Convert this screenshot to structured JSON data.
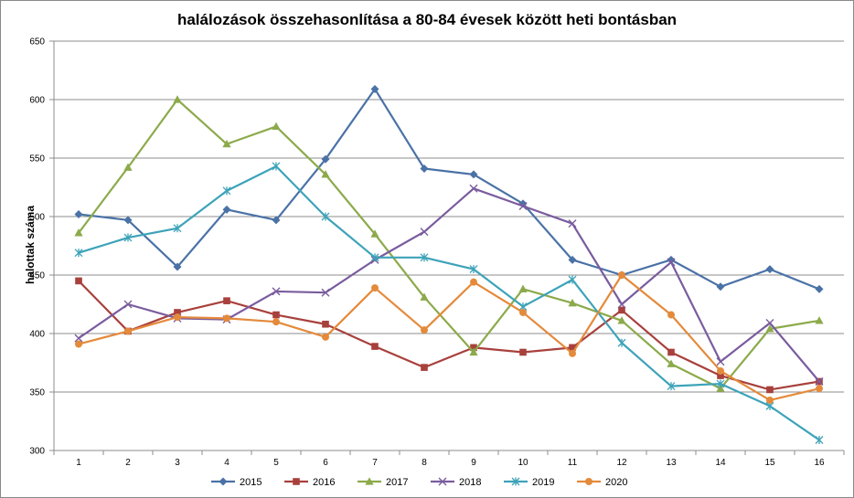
{
  "chart_data": {
    "type": "line",
    "title": "halálozások összehasonlítása a 80-84 évesek között heti bontásban",
    "ylabel": "halottak száma",
    "xlabel": "",
    "ylim": [
      300,
      650
    ],
    "y_ticks": [
      300,
      350,
      400,
      450,
      500,
      550,
      600,
      650
    ],
    "categories": [
      "1",
      "2",
      "3",
      "4",
      "5",
      "6",
      "7",
      "8",
      "9",
      "10",
      "11",
      "12",
      "13",
      "14",
      "15",
      "16"
    ],
    "grid": "horizontal",
    "legend_position": "bottom",
    "series": [
      {
        "name": "2015",
        "color": "#4A72A6",
        "marker": "diamond",
        "values": [
          502,
          497,
          457,
          506,
          497,
          549,
          609,
          541,
          536,
          511,
          463,
          450,
          463,
          440,
          455,
          438
        ]
      },
      {
        "name": "2016",
        "color": "#A8403C",
        "marker": "square",
        "values": [
          445,
          402,
          418,
          428,
          416,
          408,
          389,
          371,
          388,
          384,
          388,
          420,
          384,
          364,
          352,
          359
        ]
      },
      {
        "name": "2017",
        "color": "#8CAA4B",
        "marker": "triangle",
        "values": [
          486,
          542,
          600,
          562,
          577,
          536,
          485,
          431,
          384,
          438,
          426,
          411,
          374,
          353,
          404,
          411
        ]
      },
      {
        "name": "2018",
        "color": "#7A5C9E",
        "marker": "x",
        "values": [
          396,
          425,
          413,
          412,
          436,
          435,
          463,
          487,
          524,
          509,
          494,
          425,
          461,
          376,
          409,
          359
        ]
      },
      {
        "name": "2019",
        "color": "#3DA3B9",
        "marker": "star",
        "values": [
          469,
          482,
          490,
          522,
          543,
          500,
          465,
          465,
          455,
          423,
          446,
          392,
          355,
          357,
          338,
          309
        ]
      },
      {
        "name": "2020",
        "color": "#E48A3B",
        "marker": "circle",
        "values": [
          391,
          402,
          414,
          413,
          410,
          397,
          439,
          403,
          444,
          418,
          383,
          450,
          416,
          368,
          343,
          353
        ]
      }
    ]
  }
}
